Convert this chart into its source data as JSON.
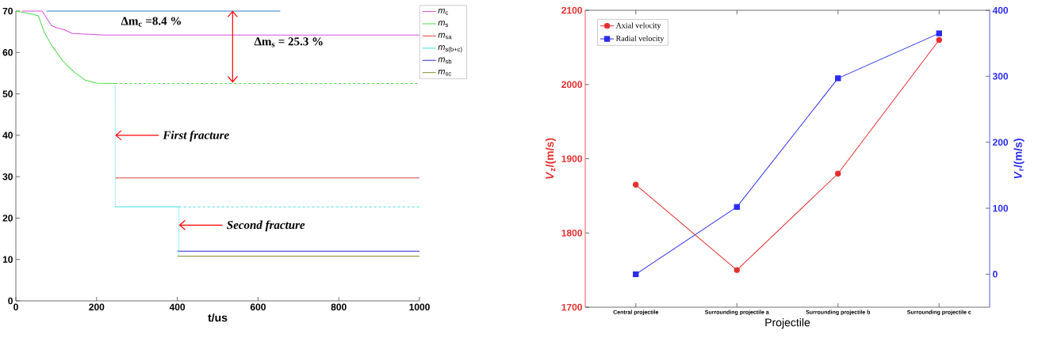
{
  "chart_data": [
    {
      "type": "line",
      "xlabel": "t/us",
      "xlim": [
        0,
        1000
      ],
      "xticks": [
        0,
        200,
        400,
        600,
        800,
        1000
      ],
      "ylim": [
        0,
        70
      ],
      "yticks": [
        0,
        10,
        20,
        30,
        40,
        50,
        60,
        70
      ],
      "legend": "right",
      "series": [
        {
          "name": "*m*$_{c}$",
          "color": "#d94fd9",
          "x": [
            15,
            65,
            75,
            88,
            100,
            120,
            140,
            180,
            221,
            1000
          ],
          "values": [
            70,
            70,
            68.5,
            66.5,
            66,
            65.5,
            64.6,
            64.4,
            64.2,
            64.2
          ]
        },
        {
          "name": "*m*$_{s}$",
          "color": "#4fd94f",
          "x": [
            0,
            40,
            56,
            70,
            88,
            116,
            144,
            172,
            200,
            246
          ],
          "values": [
            70,
            69.3,
            68.8,
            65,
            61.8,
            58,
            55.3,
            53.3,
            52.6,
            52.5
          ]
        },
        {
          "name": "*m*$_{sa}$",
          "color": "#d94545",
          "x": [
            246,
            1000
          ],
          "values": [
            29.7,
            29.7
          ]
        },
        {
          "name": "*m*$_{s(b+c)}$",
          "color": "#40e0e8",
          "x": [
            246,
            404
          ],
          "values": [
            22.7,
            22.7
          ]
        },
        {
          "name": "*m*$_{sb}$",
          "color": "#2b2bd0",
          "x": [
            400,
            1000
          ],
          "values": [
            12,
            12
          ]
        },
        {
          "name": "*m*$_{sc}$",
          "color": "#8a8a30",
          "x": [
            400,
            1000
          ],
          "values": [
            10.8,
            10.8
          ]
        },
        {
          "color": "#4fd94f",
          "line_style": "dashed",
          "x": [
            246,
            1000
          ],
          "values": [
            52.5,
            52.5
          ]
        },
        {
          "color": "#40e0e8",
          "line_style": "dashed",
          "x": [
            404,
            1000
          ],
          "values": [
            22.7,
            22.7
          ]
        },
        {
          "color": "#40e0e8",
          "line_style": "dotted",
          "x": [
            246,
            246,
            325,
            404,
            404
          ],
          "values": [
            52,
            22.7,
            null,
            22.7,
            10.8
          ]
        },
        {
          "color": "#2f7fd0",
          "x": [
            76,
            655
          ],
          "values": [
            70,
            70
          ]
        }
      ],
      "annotations": [
        "Δm$_{c}$ =8.4 %",
        "Δm$_{s}$ = 25.3 %",
        {
          "text": "First fracture",
          "x": 246,
          "y": 40
        },
        {
          "text": "Second fracture",
          "x": 404,
          "y": 18.3
        }
      ]
    },
    {
      "type": "line",
      "categories": [
        "Central projectile",
        "Surrounding projectile a",
        "Surrounding projectile b",
        "Surrounding projectile c"
      ],
      "xlabel": "Projectile",
      "ylabel": "*V*$_{z}$/(m/s)",
      "y2label": "*V*$_{r}$/(m/s)",
      "ylim": [
        1700,
        2100
      ],
      "yticks": [
        1700,
        1800,
        1900,
        2000,
        2100
      ],
      "y2lim": [
        -50,
        400
      ],
      "y2ticks": [
        0,
        100,
        200,
        300,
        400
      ],
      "legend": "top left",
      "series": [
        {
          "name": "Axial   velocity",
          "color": "#e62e2e",
          "marker": "circle",
          "values": [
            1865,
            1750,
            1880,
            2060
          ]
        },
        {
          "name": "Radial velocity",
          "color": "#2b2bef",
          "marker": "square",
          "axis": "y2",
          "values": [
            0,
            102,
            297,
            365
          ]
        }
      ]
    }
  ]
}
